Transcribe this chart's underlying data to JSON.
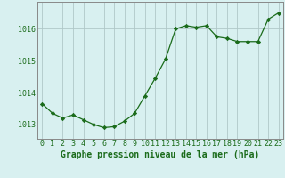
{
  "x": [
    0,
    1,
    2,
    3,
    4,
    5,
    6,
    7,
    8,
    9,
    10,
    11,
    12,
    13,
    14,
    15,
    16,
    17,
    18,
    19,
    20,
    21,
    22,
    23
  ],
  "y": [
    1013.65,
    1013.35,
    1013.2,
    1013.3,
    1013.15,
    1013.0,
    1012.9,
    1012.93,
    1013.1,
    1013.35,
    1013.9,
    1014.45,
    1015.05,
    1016.0,
    1016.1,
    1016.05,
    1016.1,
    1015.75,
    1015.7,
    1015.6,
    1015.6,
    1015.6,
    1016.3,
    1016.5
  ],
  "line_color": "#1a6b1a",
  "marker_color": "#1a6b1a",
  "background_color": "#d8f0f0",
  "grid_color": "#b0c8c8",
  "axis_color": "#888888",
  "xlabel": "Graphe pression niveau de la mer (hPa)",
  "xlabel_fontsize": 7,
  "tick_fontsize": 6,
  "ylim": [
    1012.55,
    1016.85
  ],
  "yticks": [
    1013,
    1014,
    1015,
    1016
  ],
  "xticks": [
    0,
    1,
    2,
    3,
    4,
    5,
    6,
    7,
    8,
    9,
    10,
    11,
    12,
    13,
    14,
    15,
    16,
    17,
    18,
    19,
    20,
    21,
    22,
    23
  ]
}
